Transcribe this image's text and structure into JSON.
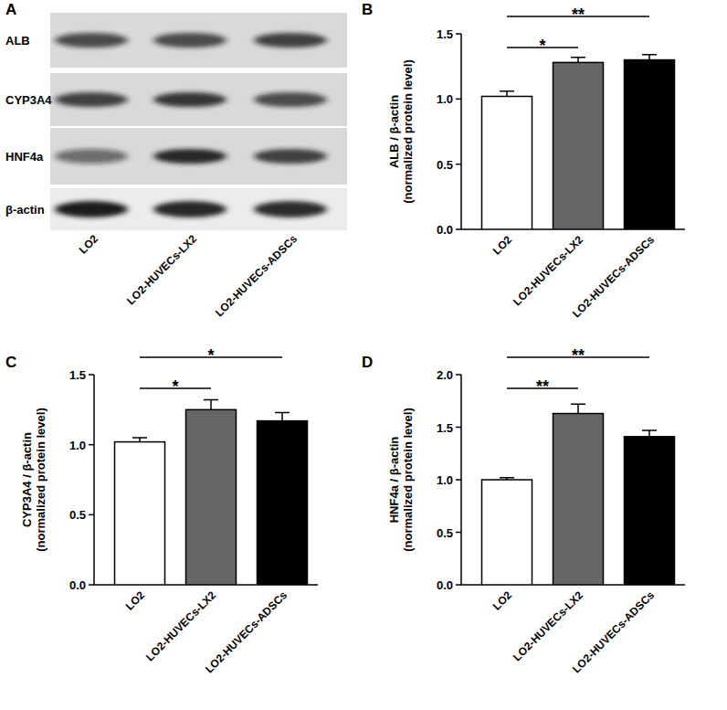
{
  "blot": {
    "panel": "A",
    "rows": [
      "ALB",
      "CYP3A4",
      "HNF4a",
      "β-actin"
    ],
    "lanes": [
      "LO2",
      "LO2-HUVECs-LX2",
      "LO2-HUVECs-ADSCs"
    ]
  },
  "chart_data": [
    {
      "type": "bar",
      "panel": "B",
      "y_label": "ALB / β-actin\n(normalized protein level)",
      "categories": [
        "LO2",
        "LO2-HUVECs-LX2",
        "LO2-HUVECs-ADSCs"
      ],
      "values": [
        1.02,
        1.28,
        1.3
      ],
      "errors": [
        0.04,
        0.04,
        0.04
      ],
      "colors": [
        "#ffffff",
        "#666666",
        "#000000"
      ],
      "ylim": [
        0,
        1.5
      ],
      "yticks": [
        {
          "value": 0,
          "label": "0.0"
        },
        {
          "value": 0.5,
          "label": "0.5"
        },
        {
          "value": 1,
          "label": "1.0"
        },
        {
          "value": 1.5,
          "label": "1.5"
        }
      ],
      "annotations": [
        {
          "text": "*",
          "between": [
            "LO2",
            "LO2-HUVECs-LX2"
          ]
        },
        {
          "text": "**",
          "between": [
            "LO2",
            "LO2-HUVECs-ADSCs"
          ]
        }
      ]
    },
    {
      "type": "bar",
      "panel": "C",
      "y_label": "CYP3A4 / β-actin\n(normalized protein level)",
      "categories": [
        "LO2",
        "LO2-HUVECs-LX2",
        "LO2-HUVECs-ADSCs"
      ],
      "values": [
        1.02,
        1.25,
        1.17
      ],
      "errors": [
        0.03,
        0.07,
        0.06
      ],
      "colors": [
        "#ffffff",
        "#666666",
        "#000000"
      ],
      "ylim": [
        0,
        1.5
      ],
      "yticks": [
        {
          "value": 0,
          "label": "0.0"
        },
        {
          "value": 0.5,
          "label": "0.5"
        },
        {
          "value": 1,
          "label": "1.0"
        },
        {
          "value": 1.5,
          "label": "1.5"
        }
      ],
      "annotations": [
        {
          "text": "*",
          "between": [
            "LO2",
            "LO2-HUVECs-LX2"
          ]
        },
        {
          "text": "*",
          "between": [
            "LO2",
            "LO2-HUVECs-ADSCs"
          ]
        }
      ]
    },
    {
      "type": "bar",
      "panel": "D",
      "y_label": "HNF4a / β-actin\n(normalized protein level)",
      "categories": [
        "LO2",
        "LO2-HUVECs-LX2",
        "LO2-HUVECs-ADSCs"
      ],
      "values": [
        1.0,
        1.63,
        1.41
      ],
      "errors": [
        0.02,
        0.09,
        0.06
      ],
      "colors": [
        "#ffffff",
        "#666666",
        "#000000"
      ],
      "ylim": [
        0,
        2
      ],
      "yticks": [
        {
          "value": 0,
          "label": "0.0"
        },
        {
          "value": 0.5,
          "label": "0.5"
        },
        {
          "value": 1,
          "label": "1.0"
        },
        {
          "value": 1.5,
          "label": "1.5"
        },
        {
          "value": 2,
          "label": "2.0"
        }
      ],
      "annotations": [
        {
          "text": "**",
          "between": [
            "LO2",
            "LO2-HUVECs-LX2"
          ]
        },
        {
          "text": "**",
          "between": [
            "LO2",
            "LO2-HUVECs-ADSCs"
          ]
        }
      ]
    }
  ]
}
